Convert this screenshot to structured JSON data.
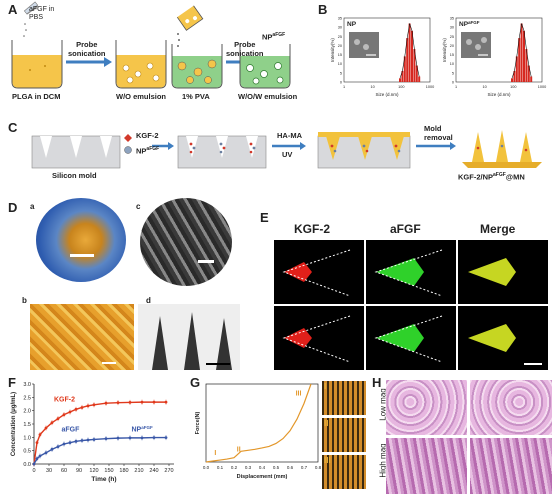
{
  "panels": {
    "A": "A",
    "B": "B",
    "C": "C",
    "D": "D",
    "E": "E",
    "F": "F",
    "G": "G",
    "H": "H"
  },
  "panel_a": {
    "reagent": "aFGF in\nPBS",
    "step1": "Probe\nsonication",
    "step2": "Probe\nsonication",
    "beakers": [
      "PLGA in DCM",
      "W/O emulsion",
      "1% PVA",
      "W/O/W emulsion"
    ],
    "np_label": "NP",
    "np_sup": "aFGF"
  },
  "panel_b": {
    "charts": [
      {
        "title": "NP",
        "title_sup": "",
        "ylabel": "Intensity(%)",
        "xlabel": "Size (d.nm)",
        "yticks": [
          "0",
          "5",
          "10",
          "15",
          "20",
          "25",
          "30",
          "35"
        ],
        "xticks": [
          "1",
          "10",
          "100",
          "1000"
        ]
      },
      {
        "title": "NP",
        "title_sup": "aFGF",
        "ylabel": "Intensity(%)",
        "xlabel": "Size (d.nm)",
        "yticks": [
          "0",
          "5",
          "10",
          "15",
          "20",
          "25",
          "30",
          "35"
        ],
        "xticks": [
          "1",
          "10",
          "100",
          "1000"
        ]
      }
    ]
  },
  "panel_c": {
    "silicon": "Silicon mold",
    "kgf": "KGF-2",
    "np": "NP",
    "np_sup": "aFGF",
    "hama": "HA-MA",
    "uv": "UV",
    "removal": "Mold\nremoval",
    "product": "KGF-2/NP",
    "product_sup": "aFGF",
    "product_tail": "@MN"
  },
  "panel_d": {
    "a": "a",
    "b": "b",
    "c": "c",
    "d": "d"
  },
  "panel_e": {
    "cols": [
      "KGF-2",
      "aFGF",
      "Merge"
    ]
  },
  "panel_h": {
    "rows": [
      "Low mag",
      "High mag"
    ]
  },
  "chart_data": [
    {
      "type": "line",
      "xlabel": "Time (h)",
      "ylabel": "Concentration (μg/mL)",
      "xlim": [
        0,
        280
      ],
      "ylim": [
        0,
        3.0
      ],
      "xticks": [
        0,
        30,
        60,
        90,
        120,
        150,
        180,
        210,
        240,
        270
      ],
      "yticks": [
        0,
        0.5,
        1.0,
        1.5,
        2.0,
        2.5,
        3.0
      ],
      "series": [
        {
          "name": "KGF-2",
          "color": "#e0391c",
          "x": [
            0,
            6,
            12,
            24,
            36,
            48,
            60,
            72,
            84,
            96,
            108,
            120,
            144,
            168,
            192,
            216,
            240,
            264
          ],
          "y": [
            0,
            0.8,
            1.1,
            1.35,
            1.55,
            1.7,
            1.85,
            1.95,
            2.05,
            2.12,
            2.18,
            2.22,
            2.28,
            2.3,
            2.31,
            2.32,
            2.32,
            2.32
          ]
        },
        {
          "name": "aFGF",
          "color": "#3a58a8",
          "x": [
            0,
            6,
            12,
            24,
            36,
            48,
            60,
            72,
            84,
            96,
            108,
            120,
            144,
            168,
            192,
            216,
            240,
            264
          ],
          "y": [
            0,
            0.2,
            0.3,
            0.42,
            0.55,
            0.65,
            0.75,
            0.8,
            0.85,
            0.88,
            0.9,
            0.92,
            0.95,
            0.97,
            0.98,
            0.98,
            0.99,
            0.99
          ]
        }
      ],
      "legend": [
        "KGF-2",
        "aFGF",
        "NP"
      ],
      "legend_sup": "aFGF"
    },
    {
      "type": "line",
      "xlabel": "Displacement (mm)",
      "ylabel": "Force(N)",
      "xlim": [
        0,
        0.8
      ],
      "ylim": [
        0,
        40
      ],
      "xticks": [
        "0.0",
        "0.1",
        "0.2",
        "0.3",
        "0.4",
        "0.5",
        "0.6",
        "0.7",
        "0.8"
      ],
      "series": [
        {
          "name": "",
          "color": "#e3972a",
          "x": [
            0,
            0.05,
            0.1,
            0.15,
            0.2,
            0.22,
            0.25,
            0.3,
            0.35,
            0.4,
            0.45,
            0.5,
            0.55,
            0.6,
            0.65,
            0.7,
            0.75
          ],
          "y": [
            0,
            0.5,
            1.0,
            1.5,
            2.2,
            3.5,
            5.5,
            6.0,
            6.5,
            7.2,
            8.0,
            9.5,
            12,
            16,
            22,
            30,
            40
          ]
        }
      ],
      "annotations": [
        "I",
        "II",
        "III"
      ]
    }
  ]
}
